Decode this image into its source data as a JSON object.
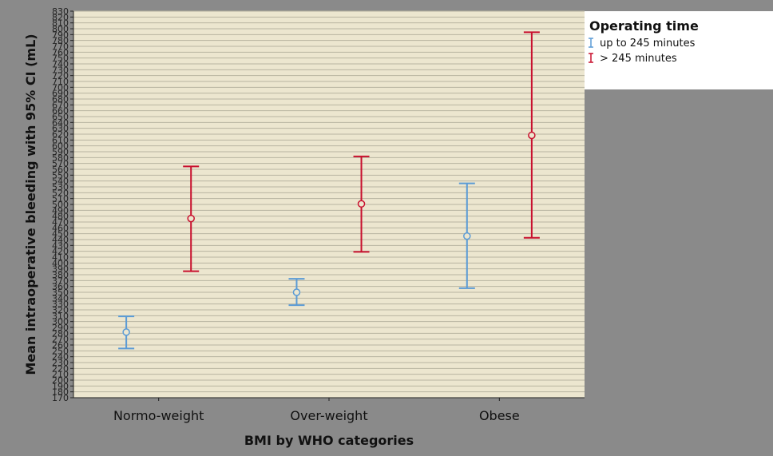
{
  "chart_data": {
    "type": "errorbar",
    "xlabel": "BMI by WHO categories",
    "ylabel": "Mean intraoperative bleeding with 95% CI (mL)",
    "ylim": [
      170,
      830
    ],
    "ytick_step": 10,
    "grid": true,
    "categories": [
      "Normo-weight",
      "Over-weight",
      "Obese"
    ],
    "legend": {
      "title": "Operating time",
      "placement": "top-right"
    },
    "series": [
      {
        "name": "up to 245 minutes",
        "color": "#5b9bd5",
        "mean": [
          282,
          350,
          446
        ],
        "lower": [
          254,
          328,
          357
        ],
        "upper": [
          309,
          373,
          536
        ]
      },
      {
        "name": "> 245 minutes",
        "color": "#c8102e",
        "mean": [
          476,
          501,
          618
        ],
        "lower": [
          386,
          419,
          443
        ],
        "upper": [
          565,
          582,
          794
        ]
      }
    ],
    "colors": {
      "background": "#8a8a8a",
      "plot_area": "#ece6cf",
      "gridline": "#b8b4a0"
    }
  }
}
